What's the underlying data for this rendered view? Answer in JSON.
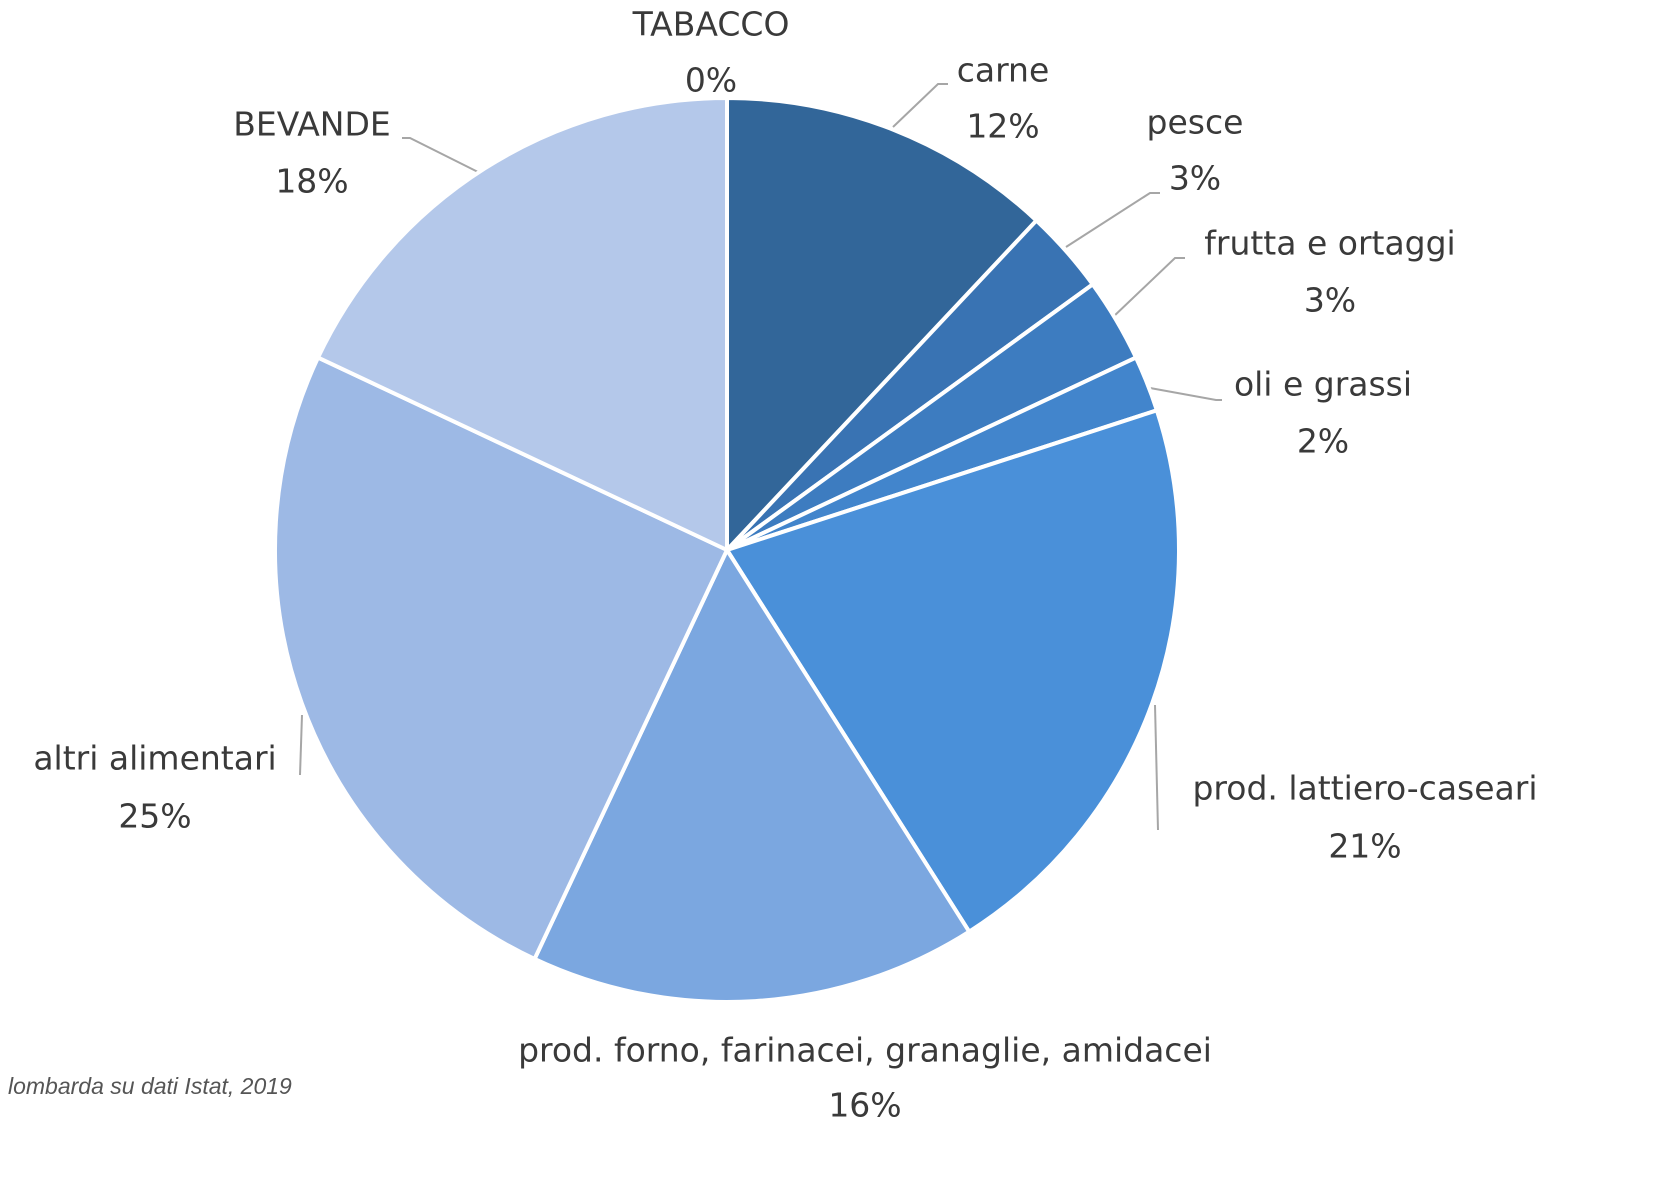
{
  "chart_data": {
    "type": "pie",
    "categories": [
      "carne",
      "pesce",
      "frutta e ortaggi",
      "oli e grassi",
      "prod. lattiero-caseari",
      "prod. forno, farinacei, granaglie, amidacei",
      "altri alimentari",
      "BEVANDE",
      "TABACCO"
    ],
    "values": [
      12,
      3,
      3,
      2,
      21,
      16,
      25,
      18,
      0
    ],
    "value_labels": [
      "12%",
      "3%",
      "3%",
      "2%",
      "21%",
      "16%",
      "25%",
      "18%",
      "0%"
    ],
    "colors": [
      "#326699",
      "#3973b3",
      "#3d7cc0",
      "#4285cc",
      "#4a90d9",
      "#7ba7e0",
      "#9db9e5",
      "#b4c8ea",
      "#c8d6ef"
    ],
    "source": "lombarda su dati Istat, 2019"
  }
}
